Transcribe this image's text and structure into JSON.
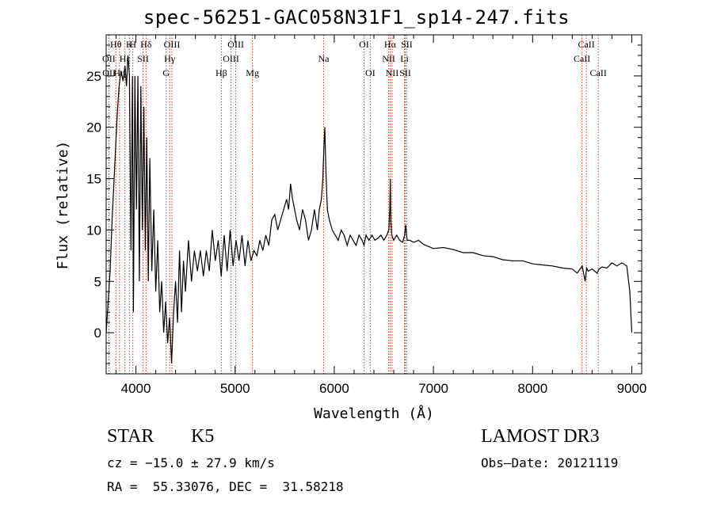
{
  "chart_data": {
    "type": "line",
    "title": "spec-56251-GAC058N31F1_sp14-247.fits",
    "xlabel": "Wavelength (Å)",
    "ylabel": "Flux (relative)",
    "xlim": [
      3700,
      9100
    ],
    "ylim": [
      -4,
      29
    ],
    "xticks": [
      4000,
      5000,
      6000,
      7000,
      8000,
      9000
    ],
    "yticks": [
      0,
      5,
      10,
      15,
      20,
      25
    ],
    "grid": false,
    "lines": [
      {
        "label": "Hθ",
        "wave": 3798,
        "row": 0
      },
      {
        "label": "K",
        "wave": 3934,
        "row": 0
      },
      {
        "label": "H",
        "wave": 3969,
        "row": 0
      },
      {
        "label": "Hδ",
        "wave": 4102,
        "row": 0
      },
      {
        "label": "OIII",
        "wave": 4363,
        "row": 0
      },
      {
        "label": "OIII",
        "wave": 5007,
        "row": 0
      },
      {
        "label": "OI",
        "wave": 6300,
        "row": 0
      },
      {
        "label": "Hα",
        "wave": 6563,
        "row": 0
      },
      {
        "label": "SII",
        "wave": 6731,
        "row": 0
      },
      {
        "label": "CaII",
        "wave": 8542,
        "row": 0
      },
      {
        "label": "OII",
        "wave": 3727,
        "row": 1
      },
      {
        "label": "Hε",
        "wave": 3889,
        "row": 1
      },
      {
        "label": "SII",
        "wave": 4072,
        "row": 1
      },
      {
        "label": "Hγ",
        "wave": 4340,
        "row": 1
      },
      {
        "label": "OIII",
        "wave": 4959,
        "row": 1
      },
      {
        "label": "Na",
        "wave": 5893,
        "row": 1
      },
      {
        "label": "NII",
        "wave": 6548,
        "row": 1
      },
      {
        "label": "Li",
        "wave": 6708,
        "row": 1
      },
      {
        "label": "CaII",
        "wave": 8498,
        "row": 1
      },
      {
        "label": "OII",
        "wave": 3729,
        "row": 2
      },
      {
        "label": "Hη",
        "wave": 3835,
        "row": 2
      },
      {
        "label": "G",
        "wave": 4305,
        "row": 2
      },
      {
        "label": "Hβ",
        "wave": 4861,
        "row": 2
      },
      {
        "label": "Mg",
        "wave": 5175,
        "row": 2
      },
      {
        "label": "OI",
        "wave": 6363,
        "row": 2
      },
      {
        "label": "NII",
        "wave": 6583,
        "row": 2
      },
      {
        "label": "SII",
        "wave": 6716,
        "row": 2
      },
      {
        "label": "CaII",
        "wave": 8662,
        "row": 2
      }
    ],
    "series": [
      {
        "wavelength": [
          3700,
          3740,
          3760,
          3790,
          3810,
          3830,
          3850,
          3870,
          3890,
          3905,
          3920,
          3935,
          3950,
          3965,
          3975,
          3990,
          4005,
          4020,
          4035,
          4050,
          4065,
          4080,
          4095,
          4110,
          4125,
          4140,
          4160,
          4180,
          4200,
          4220,
          4240,
          4260,
          4280,
          4300,
          4320,
          4340,
          4360,
          4380,
          4400,
          4420,
          4440,
          4460,
          4480,
          4500,
          4530,
          4560,
          4590,
          4620,
          4650,
          4680,
          4710,
          4740,
          4770,
          4800,
          4830,
          4860,
          4890,
          4920,
          4950,
          4980,
          5010,
          5040,
          5070,
          5100,
          5130,
          5160,
          5190,
          5220,
          5250,
          5280,
          5310,
          5340,
          5370,
          5400,
          5430,
          5460,
          5490,
          5520,
          5540,
          5560,
          5580,
          5600,
          5620,
          5650,
          5680,
          5710,
          5740,
          5770,
          5800,
          5830,
          5850,
          5870,
          5885,
          5895,
          5905,
          5915,
          5930,
          5950,
          5980,
          6010,
          6040,
          6070,
          6100,
          6130,
          6160,
          6190,
          6220,
          6250,
          6280,
          6300,
          6320,
          6350,
          6380,
          6410,
          6440,
          6470,
          6500,
          6530,
          6550,
          6560,
          6565,
          6570,
          6580,
          6600,
          6630,
          6660,
          6690,
          6710,
          6720,
          6735,
          6760,
          6800,
          6850,
          6900,
          6950,
          7000,
          7100,
          7200,
          7300,
          7400,
          7500,
          7600,
          7700,
          7800,
          7900,
          8000,
          8100,
          8200,
          8300,
          8400,
          8450,
          8500,
          8530,
          8545,
          8560,
          8600,
          8650,
          8670,
          8700,
          8750,
          8800,
          8850,
          8900,
          8950,
          8980,
          9000,
          9010
        ],
        "flux": [
          0,
          6,
          11,
          17,
          21,
          24,
          25.5,
          24.5,
          26,
          24,
          27,
          25,
          8,
          25,
          2,
          25,
          12,
          25,
          5,
          24,
          10,
          22,
          8,
          19,
          5,
          17,
          6,
          12,
          4,
          9,
          2,
          5,
          0,
          3,
          -1,
          1.5,
          -3,
          2,
          5,
          1,
          8,
          2,
          7,
          4,
          9,
          5,
          8,
          6,
          8,
          5.5,
          8,
          6,
          10,
          7,
          9,
          5.5,
          9.5,
          6,
          10,
          6.5,
          9,
          7,
          9.5,
          6.5,
          9,
          7,
          8,
          7.5,
          9,
          8,
          9.5,
          8.5,
          11,
          11.5,
          10,
          11,
          12,
          13,
          12,
          14.5,
          13,
          12,
          11,
          10,
          12,
          11,
          9,
          10,
          12,
          10,
          12,
          13,
          15,
          18,
          20,
          16,
          12,
          11,
          10,
          9.5,
          9,
          10,
          9.5,
          8.5,
          9.5,
          9,
          8.5,
          9.5,
          9,
          8.5,
          9.5,
          9,
          9.5,
          9,
          9.2,
          9.5,
          9,
          9.5,
          10,
          12,
          15,
          11,
          9.5,
          9,
          9.5,
          9,
          8.8,
          9.5,
          10.5,
          9,
          9,
          8.8,
          9,
          8.6,
          8.4,
          8.2,
          8.3,
          8.1,
          7.8,
          7.8,
          7.5,
          7.4,
          7.1,
          7.0,
          7.0,
          6.7,
          6.6,
          6.5,
          6.3,
          6.2,
          5.8,
          6.5,
          5.0,
          6.3,
          6.0,
          6.2,
          5.8,
          6.2,
          6.4,
          6.3,
          6.8,
          6.5,
          6.8,
          6.5,
          4,
          0
        ]
      }
    ]
  },
  "info": {
    "object_class": "STAR",
    "subclass": "K5",
    "survey": "LAMOST DR3",
    "redshift_line": "cz = −15.0 ± 27.9 km/s",
    "obs_date": "Obs–Date: 20121119",
    "coords": "RA =  55.33076, DEC =  31.58218"
  }
}
